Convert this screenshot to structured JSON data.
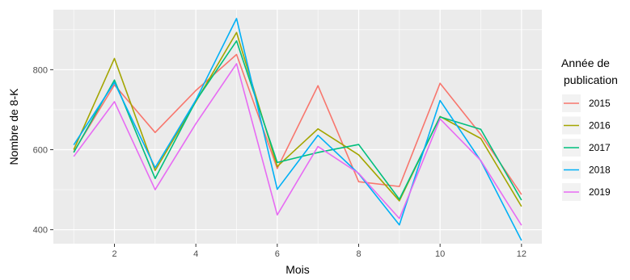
{
  "chart_data": {
    "type": "line",
    "xlabel": "Mois",
    "ylabel": "Nombre de 8-K",
    "x": [
      1,
      2,
      3,
      4,
      5,
      6,
      7,
      8,
      9,
      10,
      11,
      12
    ],
    "xlim": [
      0.5,
      12.5
    ],
    "ylim": [
      365,
      950
    ],
    "xticks": [
      2,
      4,
      6,
      8,
      10,
      12
    ],
    "yticks": [
      400,
      600,
      800
    ],
    "grid": true,
    "legend": {
      "title_lines": [
        "Année de",
        "publication"
      ],
      "placement": "right"
    },
    "series": [
      {
        "name": "2015",
        "color": "#F8766D",
        "values": [
          595,
          762,
          643,
          748,
          838,
          553,
          760,
          520,
          508,
          766,
          638,
          488
        ]
      },
      {
        "name": "2016",
        "color": "#A3A500",
        "values": [
          600,
          828,
          548,
          720,
          893,
          558,
          652,
          587,
          472,
          683,
          628,
          458
        ]
      },
      {
        "name": "2017",
        "color": "#00BF7D",
        "values": [
          593,
          774,
          528,
          722,
          872,
          568,
          593,
          613,
          476,
          682,
          651,
          474
        ]
      },
      {
        "name": "2018",
        "color": "#00B0F6",
        "values": [
          612,
          768,
          555,
          724,
          928,
          501,
          636,
          540,
          412,
          723,
          572,
          373
        ]
      },
      {
        "name": "2019",
        "color": "#E76BF3",
        "values": [
          583,
          720,
          500,
          665,
          815,
          437,
          608,
          541,
          428,
          677,
          573,
          411
        ]
      }
    ]
  }
}
